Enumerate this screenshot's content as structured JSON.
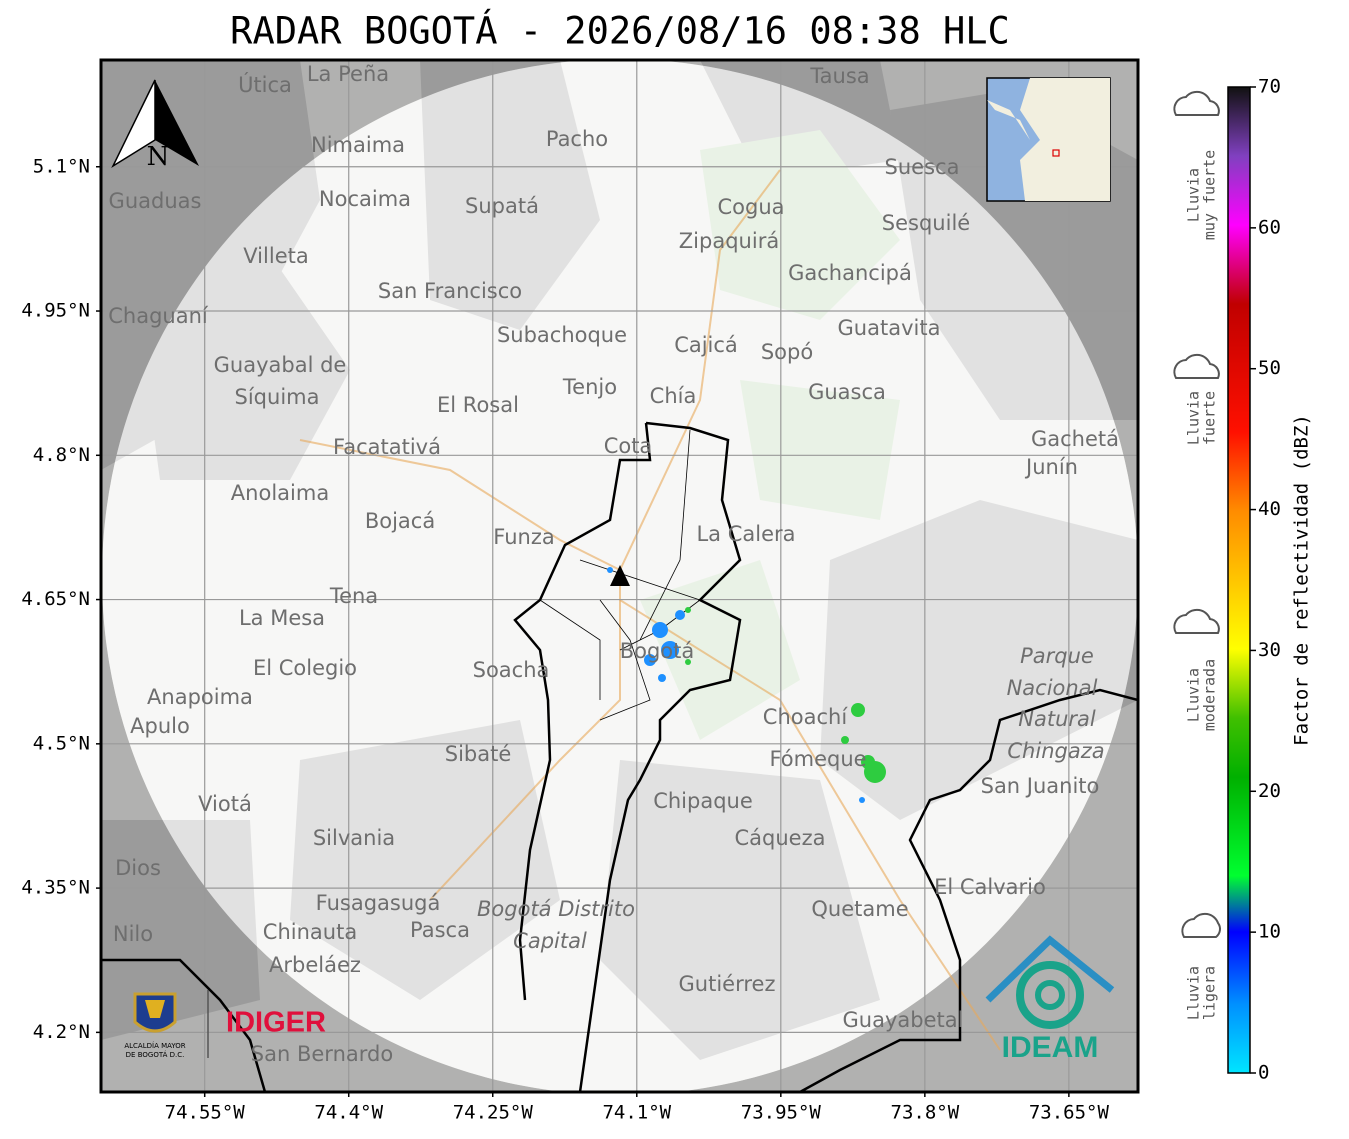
{
  "title": "RADAR BOGOTÁ - 2026/08/16 08:38 HLC",
  "map": {
    "xlim": [
      -74.658,
      -73.578
    ],
    "ylim": [
      4.138,
      5.211
    ],
    "lon_ticks": [
      {
        "value": -74.55,
        "label": "74.55°W"
      },
      {
        "value": -74.4,
        "label": "74.4°W"
      },
      {
        "value": -74.25,
        "label": "74.25°W"
      },
      {
        "value": -74.1,
        "label": "74.1°W"
      },
      {
        "value": -73.95,
        "label": "73.95°W"
      },
      {
        "value": -73.8,
        "label": "73.8°W"
      },
      {
        "value": -73.65,
        "label": "73.65°W"
      }
    ],
    "lat_ticks": [
      {
        "value": 5.1,
        "label": "5.1°N"
      },
      {
        "value": 4.95,
        "label": "4.95°N"
      },
      {
        "value": 4.8,
        "label": "4.8°N"
      },
      {
        "value": 4.65,
        "label": "4.65°N"
      },
      {
        "value": 4.5,
        "label": "4.5°N"
      },
      {
        "value": 4.35,
        "label": "4.35°N"
      },
      {
        "value": 4.2,
        "label": "4.2°N"
      }
    ],
    "compass": "N",
    "places": [
      "La Peña",
      "Útica",
      "Tausa",
      "Pacho",
      "Nimaima",
      "Nocaima",
      "Supatá",
      "Guaduas",
      "Suesca",
      "Cogua",
      "Sesquilé",
      "Zipaquirá",
      "Villeta",
      "San Francisco",
      "Gachancipá",
      "Chaguaní",
      "Subachoque",
      "Guatavita",
      "Cajicá",
      "Sopó",
      "Guayabal de",
      "Síquima",
      "Tenjo",
      "El Rosal",
      "Chía",
      "Guasca",
      "Facatativá",
      "Cota",
      "Gachetá",
      "Junín",
      "Anolaima",
      "Bojacá",
      "Funza",
      "La Calera",
      "Tena",
      "La Mesa",
      "Bogotá",
      "Soacha",
      "El Colegio",
      "Parque",
      "Nacional",
      "Natural",
      "Chingaza",
      "Anapoima",
      "Apulo",
      "Choachí",
      "Sibaté",
      "Fómeque",
      "San Juanito",
      "Chipaque",
      "Silvania",
      "Cáqueza",
      "Dios",
      "El Calvario",
      "Fusagasugá",
      "Bogotá Distrito",
      "Capital",
      "Quetame",
      "Nilo",
      "Chinauta",
      "Pasca",
      "Arbeláez",
      "Gutiérrez",
      "Guayabetal",
      "San Bernardo",
      "Viotá"
    ]
  },
  "logos": {
    "alcaldia": [
      "ALCALDÍA MAYOR",
      "DE BOGOTÁ D.C."
    ],
    "idiger": "IDIGER",
    "ideam": "IDEAM"
  },
  "colorbar": {
    "label": "Factor de reflectividad (dBZ)",
    "range": [
      0,
      70
    ],
    "ticks": [
      0,
      10,
      20,
      30,
      40,
      50,
      60,
      70
    ],
    "rain_levels": [
      {
        "lines": [
          "Lluvia",
          "muy fuerte"
        ]
      },
      {
        "lines": [
          "Lluvia",
          "fuerte"
        ]
      },
      {
        "lines": [
          "Lluvia",
          "moderada"
        ]
      },
      {
        "lines": [
          "Lluvia",
          "ligera"
        ]
      }
    ]
  }
}
